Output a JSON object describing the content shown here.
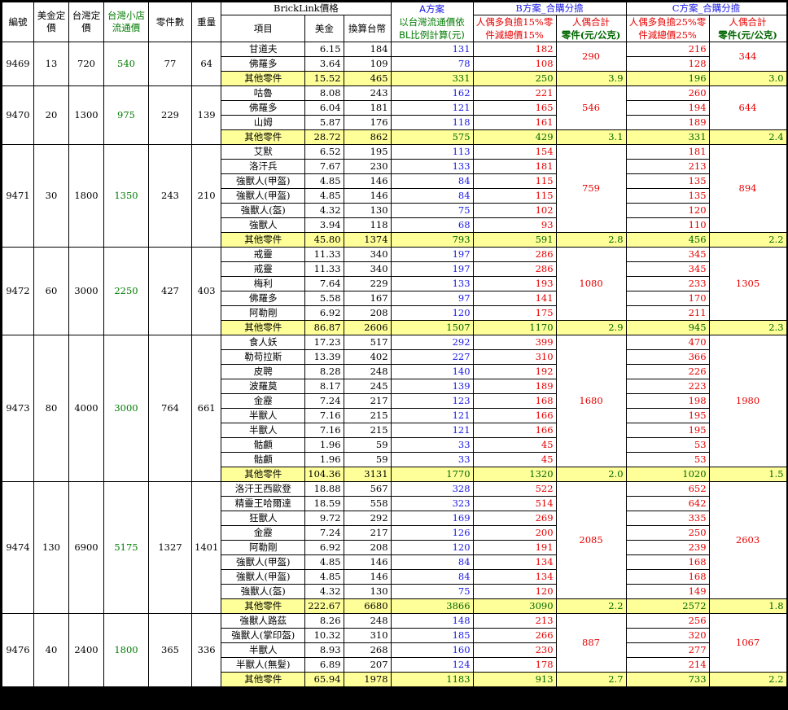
{
  "headers": {
    "id": "編號",
    "usd_price": "美金定價",
    "tw_price": "台灣定價",
    "shop_price": "台灣小店流通價",
    "parts": "零件數",
    "weight": "重量",
    "bricklink": "BrickLink價格",
    "item": "項目",
    "usd": "美金",
    "twd": "換算台幣",
    "plan_a": "A方案",
    "plan_a_desc": "以台灣流通價依BL比例計算(元)",
    "plan_b": "B方案_合購分擔",
    "plan_b_desc": "人偶多負擔15%零件減總價15%",
    "plan_c": "C方案_合購分擔",
    "plan_c_desc": "人偶多負擔25%零件減總價25%",
    "fig_total": "人偶合計",
    "part_unit": "零件(元/公克)"
  },
  "sets": [
    {
      "id": "9469",
      "usd": "13",
      "tw": "720",
      "shop": "540",
      "parts": "77",
      "weight": "64",
      "rows": [
        {
          "item": "甘道夫",
          "usd": "6.15",
          "twd": "184",
          "a": "131",
          "b": "182",
          "c": "216"
        },
        {
          "item": "佛羅多",
          "usd": "3.64",
          "twd": "109",
          "a": "78",
          "b": "108",
          "c": "128"
        }
      ],
      "other": {
        "item": "其他零件",
        "usd": "15.52",
        "twd": "465",
        "a": "331",
        "b": "250",
        "b_rate": "3.9",
        "c": "196",
        "c_rate": "3.0"
      },
      "b_total": "290",
      "c_total": "344"
    },
    {
      "id": "9470",
      "usd": "20",
      "tw": "1300",
      "shop": "975",
      "parts": "229",
      "weight": "139",
      "rows": [
        {
          "item": "咕魯",
          "usd": "8.08",
          "twd": "243",
          "a": "162",
          "b": "221",
          "c": "260"
        },
        {
          "item": "佛羅多",
          "usd": "6.04",
          "twd": "181",
          "a": "121",
          "b": "165",
          "c": "194"
        },
        {
          "item": "山姆",
          "usd": "5.87",
          "twd": "176",
          "a": "118",
          "b": "161",
          "c": "189"
        }
      ],
      "other": {
        "item": "其他零件",
        "usd": "28.72",
        "twd": "862",
        "a": "575",
        "b": "429",
        "b_rate": "3.1",
        "c": "331",
        "c_rate": "2.4"
      },
      "b_total": "546",
      "c_total": "644"
    },
    {
      "id": "9471",
      "usd": "30",
      "tw": "1800",
      "shop": "1350",
      "parts": "243",
      "weight": "210",
      "rows": [
        {
          "item": "艾默",
          "usd": "6.52",
          "twd": "195",
          "a": "113",
          "b": "154",
          "c": "181"
        },
        {
          "item": "洛汗兵",
          "usd": "7.67",
          "twd": "230",
          "a": "133",
          "b": "181",
          "c": "213"
        },
        {
          "item": "強獸人(甲盔)",
          "usd": "4.85",
          "twd": "146",
          "a": "84",
          "b": "115",
          "c": "135"
        },
        {
          "item": "強獸人(甲盔)",
          "usd": "4.85",
          "twd": "146",
          "a": "84",
          "b": "115",
          "c": "135"
        },
        {
          "item": "強獸人(盔)",
          "usd": "4.32",
          "twd": "130",
          "a": "75",
          "b": "102",
          "c": "120"
        },
        {
          "item": "強獸人",
          "usd": "3.94",
          "twd": "118",
          "a": "68",
          "b": "93",
          "c": "110"
        }
      ],
      "other": {
        "item": "其他零件",
        "usd": "45.80",
        "twd": "1374",
        "a": "793",
        "b": "591",
        "b_rate": "2.8",
        "c": "456",
        "c_rate": "2.2"
      },
      "b_total": "759",
      "c_total": "894"
    },
    {
      "id": "9472",
      "usd": "60",
      "tw": "3000",
      "shop": "2250",
      "parts": "427",
      "weight": "403",
      "rows": [
        {
          "item": "戒靈",
          "usd": "11.33",
          "twd": "340",
          "a": "197",
          "b": "286",
          "c": "345"
        },
        {
          "item": "戒靈",
          "usd": "11.33",
          "twd": "340",
          "a": "197",
          "b": "286",
          "c": "345"
        },
        {
          "item": "梅利",
          "usd": "7.64",
          "twd": "229",
          "a": "133",
          "b": "193",
          "c": "233"
        },
        {
          "item": "佛羅多",
          "usd": "5.58",
          "twd": "167",
          "a": "97",
          "b": "141",
          "c": "170"
        },
        {
          "item": "阿勒剛",
          "usd": "6.92",
          "twd": "208",
          "a": "120",
          "b": "175",
          "c": "211"
        }
      ],
      "other": {
        "item": "其他零件",
        "usd": "86.87",
        "twd": "2606",
        "a": "1507",
        "b": "1170",
        "b_rate": "2.9",
        "c": "945",
        "c_rate": "2.3"
      },
      "b_total": "1080",
      "c_total": "1305"
    },
    {
      "id": "9473",
      "usd": "80",
      "tw": "4000",
      "shop": "3000",
      "parts": "764",
      "weight": "661",
      "rows": [
        {
          "item": "食人妖",
          "usd": "17.23",
          "twd": "517",
          "a": "292",
          "b": "399",
          "c": "470"
        },
        {
          "item": "勒苟拉斯",
          "usd": "13.39",
          "twd": "402",
          "a": "227",
          "b": "310",
          "c": "366"
        },
        {
          "item": "皮聘",
          "usd": "8.28",
          "twd": "248",
          "a": "140",
          "b": "192",
          "c": "226"
        },
        {
          "item": "波羅莫",
          "usd": "8.17",
          "twd": "245",
          "a": "139",
          "b": "189",
          "c": "223"
        },
        {
          "item": "金靂",
          "usd": "7.24",
          "twd": "217",
          "a": "123",
          "b": "168",
          "c": "198"
        },
        {
          "item": "半獸人",
          "usd": "7.16",
          "twd": "215",
          "a": "121",
          "b": "166",
          "c": "195"
        },
        {
          "item": "半獸人",
          "usd": "7.16",
          "twd": "215",
          "a": "121",
          "b": "166",
          "c": "195"
        },
        {
          "item": "骷顱",
          "usd": "1.96",
          "twd": "59",
          "a": "33",
          "b": "45",
          "c": "53"
        },
        {
          "item": "骷顱",
          "usd": "1.96",
          "twd": "59",
          "a": "33",
          "b": "45",
          "c": "53"
        }
      ],
      "other": {
        "item": "其他零件",
        "usd": "104.36",
        "twd": "3131",
        "a": "1770",
        "b": "1320",
        "b_rate": "2.0",
        "c": "1020",
        "c_rate": "1.5"
      },
      "b_total": "1680",
      "c_total": "1980"
    },
    {
      "id": "9474",
      "usd": "130",
      "tw": "6900",
      "shop": "5175",
      "parts": "1327",
      "weight": "1401",
      "rows": [
        {
          "item": "洛汗王西歐登",
          "usd": "18.88",
          "twd": "567",
          "a": "328",
          "b": "522",
          "c": "652"
        },
        {
          "item": "精靈王哈爾達",
          "usd": "18.59",
          "twd": "558",
          "a": "323",
          "b": "514",
          "c": "642"
        },
        {
          "item": "狂獸人",
          "usd": "9.72",
          "twd": "292",
          "a": "169",
          "b": "269",
          "c": "335"
        },
        {
          "item": "金靂",
          "usd": "7.24",
          "twd": "217",
          "a": "126",
          "b": "200",
          "c": "250"
        },
        {
          "item": "阿勒剛",
          "usd": "6.92",
          "twd": "208",
          "a": "120",
          "b": "191",
          "c": "239"
        },
        {
          "item": "強獸人(甲盔)",
          "usd": "4.85",
          "twd": "146",
          "a": "84",
          "b": "134",
          "c": "168"
        },
        {
          "item": "強獸人(甲盔)",
          "usd": "4.85",
          "twd": "146",
          "a": "84",
          "b": "134",
          "c": "168"
        },
        {
          "item": "強獸人(盔)",
          "usd": "4.32",
          "twd": "130",
          "a": "75",
          "b": "120",
          "c": "149"
        }
      ],
      "other": {
        "item": "其他零件",
        "usd": "222.67",
        "twd": "6680",
        "a": "3866",
        "b": "3090",
        "b_rate": "2.2",
        "c": "2572",
        "c_rate": "1.8"
      },
      "b_total": "2085",
      "c_total": "2603"
    },
    {
      "id": "9476",
      "usd": "40",
      "tw": "2400",
      "shop": "1800",
      "parts": "365",
      "weight": "336",
      "rows": [
        {
          "item": "強獸人路茲",
          "usd": "8.26",
          "twd": "248",
          "a": "148",
          "b": "213",
          "c": "256"
        },
        {
          "item": "強獸人(掌印盔)",
          "usd": "10.32",
          "twd": "310",
          "a": "185",
          "b": "266",
          "c": "320"
        },
        {
          "item": "半獸人",
          "usd": "8.93",
          "twd": "268",
          "a": "160",
          "b": "230",
          "c": "277"
        },
        {
          "item": "半獸人(無髮)",
          "usd": "6.89",
          "twd": "207",
          "a": "124",
          "b": "178",
          "c": "214"
        }
      ],
      "other": {
        "item": "其他零件",
        "usd": "65.94",
        "twd": "1978",
        "a": "1183",
        "b": "913",
        "b_rate": "2.7",
        "c": "733",
        "c_rate": "2.2"
      },
      "b_total": "887",
      "c_total": "1067"
    }
  ]
}
